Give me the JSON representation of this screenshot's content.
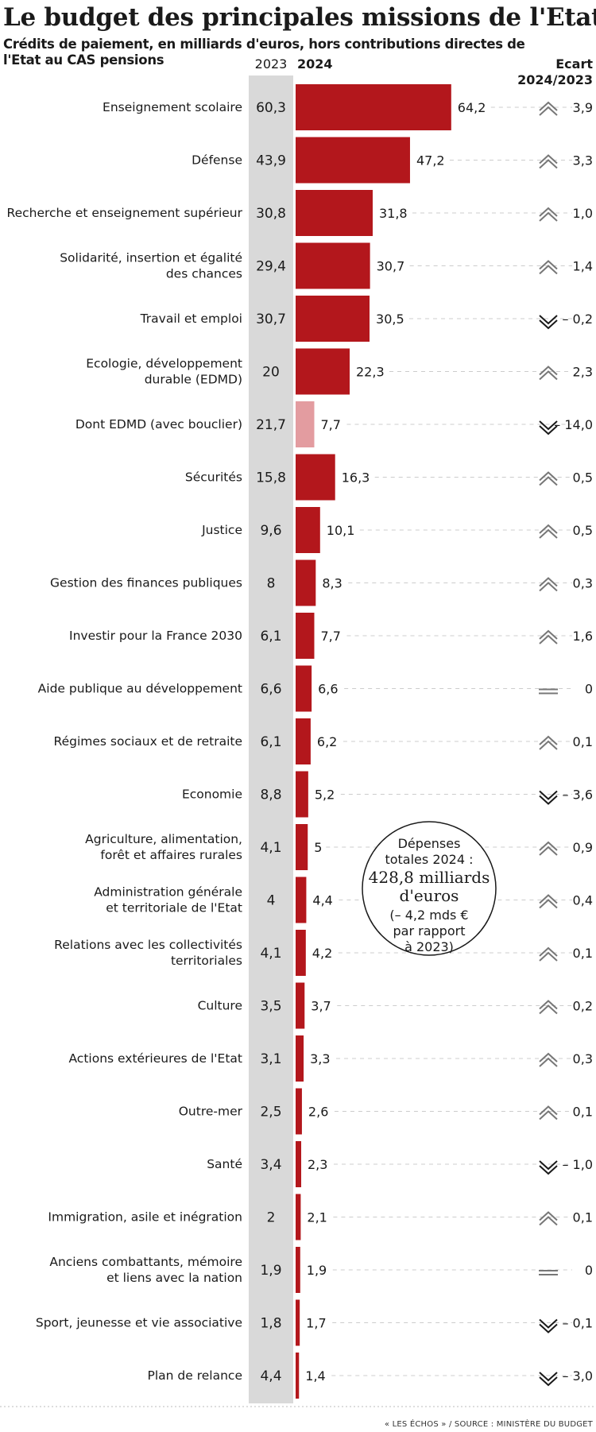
{
  "title": "Le budget des principales missions de l'Etat",
  "subtitle": "Crédits de paiement, en milliards d'euros, hors contributions directes de l'Etat au CAS pensions",
  "source": "« LES ÉCHOS » / SOURCE : MINISTÈRE DU BUDGET",
  "colors": {
    "bar": "#b3171c",
    "bar_highlight": "#e39ca0",
    "column_2023": "#d9d9d9",
    "arrow": "#777777"
  },
  "callout": {
    "lines_small_top": [
      "Dépenses",
      "totales 2024 :"
    ],
    "lines_big": [
      "428,8 milliards",
      "d'euros"
    ],
    "lines_small_bottom": [
      "(– 4,2 mds €",
      "par rapport",
      "à 2023)"
    ]
  },
  "chart_data": {
    "type": "bar",
    "orientation": "horizontal",
    "headers": {
      "y2023": "2023",
      "y2024": "2024",
      "ecart_line1": "Ecart",
      "ecart_line2": "2024/2023"
    },
    "categories": [
      [
        "Enseignement scolaire"
      ],
      [
        "Défense"
      ],
      [
        "Recherche et enseignement supérieur"
      ],
      [
        "Solidarité, insertion et égalité",
        "des chances"
      ],
      [
        "Travail et emploi"
      ],
      [
        "Ecologie, développement",
        "durable (EDMD)"
      ],
      [
        "Dont EDMD (avec bouclier)"
      ],
      [
        "Sécurités"
      ],
      [
        "Justice"
      ],
      [
        "Gestion des finances publiques"
      ],
      [
        "Investir pour la France 2030"
      ],
      [
        "Aide publique au développement"
      ],
      [
        "Régimes sociaux et de retraite"
      ],
      [
        "Economie"
      ],
      [
        "Agriculture, alimentation,",
        "forêt et affaires rurales"
      ],
      [
        "Administration générale",
        "et territoriale de l'Etat"
      ],
      [
        "Relations avec les collectivités",
        "territoriales"
      ],
      [
        "Culture"
      ],
      [
        "Actions extérieures de l'Etat"
      ],
      [
        "Outre-mer"
      ],
      [
        "Santé"
      ],
      [
        "Immigration, asile et inégration"
      ],
      [
        "Anciens combattants, mémoire",
        "et liens avec la nation"
      ],
      [
        "Sport, jeunesse et vie associative"
      ],
      [
        "Plan de relance"
      ]
    ],
    "values_2023": [
      60.3,
      43.9,
      30.8,
      29.4,
      30.7,
      20,
      21.7,
      15.8,
      9.6,
      8,
      6.1,
      6.6,
      6.1,
      8.8,
      4.1,
      4,
      4.1,
      3.5,
      3.1,
      2.5,
      3.4,
      2,
      1.9,
      1.8,
      4.4
    ],
    "labels_2023": [
      "60,3",
      "43,9",
      "30,8",
      "29,4",
      "30,7",
      "20",
      "21,7",
      "15,8",
      "9,6",
      "8",
      "6,1",
      "6,6",
      "6,1",
      "8,8",
      "4,1",
      "4",
      "4,1",
      "3,5",
      "3,1",
      "2,5",
      "3,4",
      "2",
      "1,9",
      "1,8",
      "4,4"
    ],
    "values_2024": [
      64.2,
      47.2,
      31.8,
      30.7,
      30.5,
      22.3,
      7.7,
      16.3,
      10.1,
      8.3,
      7.7,
      6.6,
      6.2,
      5.2,
      5,
      4.4,
      4.2,
      3.7,
      3.3,
      2.6,
      2.3,
      2.1,
      1.9,
      1.7,
      1.4
    ],
    "labels_2024": [
      "64,2",
      "47,2",
      "31,8",
      "30,7",
      "30,5",
      "22,3",
      "7,7",
      "16,3",
      "10,1",
      "8,3",
      "7,7",
      "6,6",
      "6,2",
      "5,2",
      "5",
      "4,4",
      "4,2",
      "3,7",
      "3,3",
      "2,6",
      "2,3",
      "2,1",
      "1,9",
      "1,7",
      "1,4"
    ],
    "highlight_index": 6,
    "ecart_values": [
      3.9,
      3.3,
      1.0,
      1.4,
      -0.2,
      2.3,
      -14.0,
      0.5,
      0.5,
      0.3,
      1.6,
      0,
      0.1,
      -3.6,
      0.9,
      0.4,
      0.1,
      0.2,
      0.3,
      0.1,
      -1.0,
      0.1,
      0,
      -0.1,
      -3.0
    ],
    "ecart_labels": [
      "3,9",
      "3,3",
      "1,0",
      "1,4",
      "– 0,2",
      "2,3",
      "– 14,0",
      "0,5",
      "0,5",
      "0,3",
      "1,6",
      "0",
      "0,1",
      "– 3,6",
      "0,9",
      "0,4",
      "0,1",
      "0,2",
      "0,3",
      "0,1",
      "– 1,0",
      "0,1",
      "0",
      "– 0,1",
      "– 3,0"
    ],
    "ecart_direction": [
      "up",
      "up",
      "up",
      "up",
      "down",
      "up",
      "down",
      "up",
      "up",
      "up",
      "up",
      "flat",
      "up",
      "down",
      "up",
      "up",
      "up",
      "up",
      "up",
      "up",
      "down",
      "up",
      "flat",
      "down",
      "down"
    ]
  }
}
